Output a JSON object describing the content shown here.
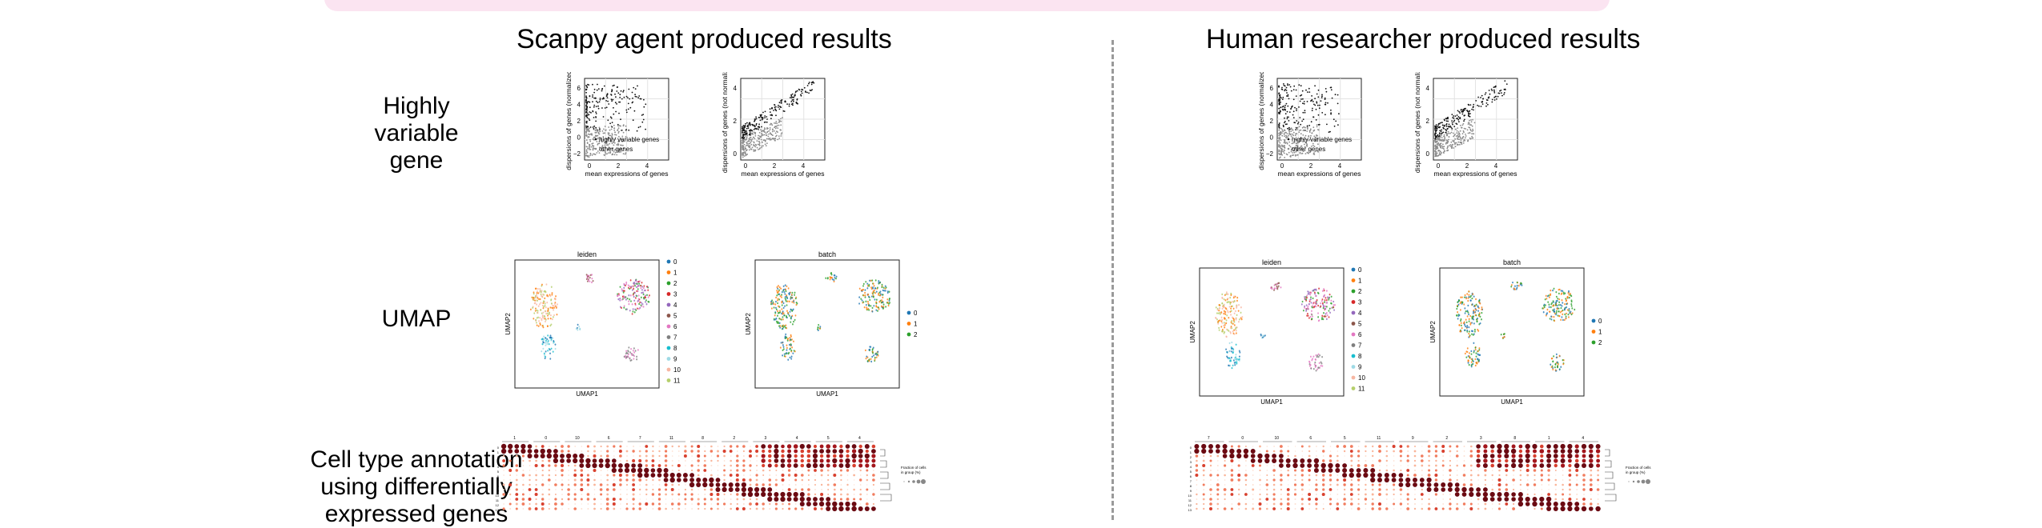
{
  "banner": {
    "color": "#fbe4f1"
  },
  "columns": [
    {
      "title": "Scanpy agent produced results"
    },
    {
      "title": "Human researcher produced results"
    }
  ],
  "rows": {
    "hvg": "Highly\nvariable\ngene",
    "umap": "UMAP",
    "annotation": "Cell type annotation\nusing differentially\nexpressed genes"
  },
  "hvg_plot": {
    "left": {
      "ylabel": "dispersions of genes (normalized)",
      "xlabel": "mean expressions of genes",
      "yticks": [
        "6",
        "4",
        "2",
        "0",
        "−2"
      ],
      "xticks": [
        "0",
        "2",
        "4"
      ],
      "legend": [
        "highly variable genes",
        "other genes"
      ]
    },
    "right": {
      "ylabel": "dispersions of genes (not normalize",
      "xlabel": "mean expressions of genes",
      "yticks": [
        "4",
        "2",
        "0"
      ],
      "xticks": [
        "0",
        "2",
        "4"
      ]
    }
  },
  "umap_plot": {
    "leiden": {
      "title": "leiden",
      "xlabel": "UMAP1",
      "ylabel": "UMAP2",
      "legend": [
        "0",
        "1",
        "2",
        "3",
        "4",
        "5",
        "6",
        "7",
        "8",
        "9",
        "10",
        "11"
      ]
    },
    "batch": {
      "title": "batch",
      "xlabel": "UMAP1",
      "ylabel": "UMAP2",
      "legend": [
        "0",
        "1",
        "2"
      ]
    },
    "colors": [
      "#1f77b4",
      "#ff7f0e",
      "#2ca02c",
      "#d62728",
      "#9467bd",
      "#8c564b",
      "#e377c2",
      "#7f7f7f",
      "#17becf",
      "#9edae5",
      "#f7b6a2",
      "#b5cf6b"
    ]
  },
  "dotplot": {
    "agent_groups": [
      "1",
      "0",
      "10",
      "6",
      "7",
      "11",
      "8",
      "2",
      "3",
      "4",
      "5",
      "4"
    ],
    "human_groups": [
      "7",
      "0",
      "10",
      "6",
      "5",
      "11",
      "9",
      "2",
      "3",
      "8",
      "1",
      "4"
    ],
    "legend_title": "Fraction of cells\nin group (%)"
  }
}
